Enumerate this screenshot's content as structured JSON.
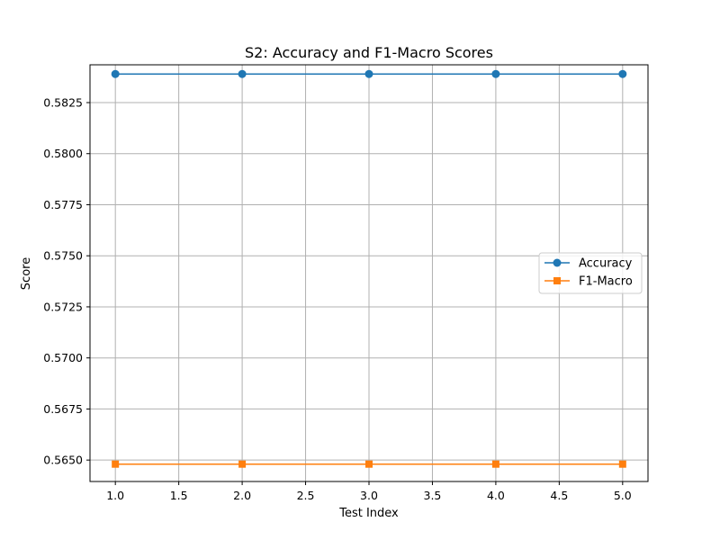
{
  "chart_data": {
    "type": "line",
    "title": "S2: Accuracy and F1-Macro Scores",
    "xlabel": "Test Index",
    "ylabel": "Score",
    "x": [
      1,
      2,
      3,
      4,
      5
    ],
    "xlim": [
      0.8,
      5.2
    ],
    "ylim": [
      0.56395,
      0.58435
    ],
    "xticks": [
      1.0,
      1.5,
      2.0,
      2.5,
      3.0,
      3.5,
      4.0,
      4.5,
      5.0
    ],
    "xtick_labels": [
      "1.0",
      "1.5",
      "2.0",
      "2.5",
      "3.0",
      "3.5",
      "4.0",
      "4.5",
      "5.0"
    ],
    "yticks": [
      0.565,
      0.5675,
      0.57,
      0.5725,
      0.575,
      0.5775,
      0.58,
      0.5825
    ],
    "ytick_labels": [
      "0.5650",
      "0.5675",
      "0.5700",
      "0.5725",
      "0.5750",
      "0.5775",
      "0.5800",
      "0.5825"
    ],
    "grid": true,
    "legend_position": "center-right",
    "series": [
      {
        "name": "Accuracy",
        "values": [
          0.5839,
          0.5839,
          0.5839,
          0.5839,
          0.5839
        ],
        "color": "#1f77b4",
        "marker": "circle"
      },
      {
        "name": "F1-Macro",
        "values": [
          0.5648,
          0.5648,
          0.5648,
          0.5648,
          0.5648
        ],
        "color": "#ff7f0e",
        "marker": "square"
      }
    ]
  }
}
